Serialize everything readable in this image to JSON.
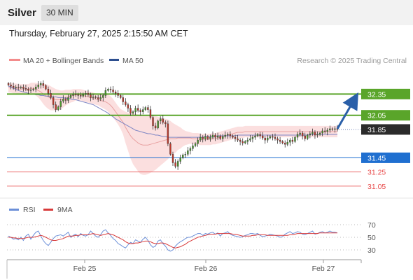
{
  "header": {
    "title": "Silver",
    "interval": "30 MIN",
    "datetime": "Thursday, February 27, 2025 2:15:50 AM CET"
  },
  "legend": {
    "bb_label": "MA 20 + Bollinger Bands",
    "ma50_label": "MA 50",
    "credit": "Research © 2025 Trading Central",
    "rsi_label": "RSI",
    "ma9_label": "9MA"
  },
  "colors": {
    "green_level": "#5aa52a",
    "blue_level": "#1f6fd0",
    "red_level": "#e84c4c",
    "price_badge": "#2b2b2b",
    "candle_up": "#4a9a2a",
    "candle_down": "#c0392b",
    "bollinger": "#f8c4c4",
    "ma50": "#7f86c4",
    "rsi": "#6b8fd8",
    "rsi_ma": "#d83a3a",
    "arrow": "#2a5fa8"
  },
  "chart_data": {
    "type": "candlestick",
    "price_axis": {
      "min": 30.95,
      "max": 32.65
    },
    "x_ticks": [
      "Feb 25",
      "Feb 26",
      "Feb 27"
    ],
    "levels": [
      {
        "value": 32.35,
        "label": "32.35",
        "kind": "resistance",
        "color": "#5aa52a"
      },
      {
        "value": 32.05,
        "label": "32.05",
        "kind": "resistance",
        "color": "#5aa52a"
      },
      {
        "value": 31.85,
        "label": "31.85",
        "kind": "last_price",
        "color": "#2b2b2b"
      },
      {
        "value": 31.45,
        "label": "31.45",
        "kind": "pivot",
        "color": "#1f6fd0"
      },
      {
        "value": 31.25,
        "label": "31.25",
        "kind": "support",
        "color": "#e84c4c"
      },
      {
        "value": 31.05,
        "label": "31.05",
        "kind": "support",
        "color": "#e84c4c"
      }
    ],
    "target_arrow": {
      "from": 31.85,
      "to": 32.35
    },
    "close": [
      32.48,
      32.46,
      32.44,
      32.45,
      32.44,
      32.45,
      32.43,
      32.42,
      32.4,
      32.41,
      32.42,
      32.45,
      32.48,
      32.5,
      32.47,
      32.42,
      32.36,
      32.3,
      32.2,
      32.13,
      32.17,
      32.25,
      32.28,
      32.26,
      32.3,
      32.33,
      32.35,
      32.34,
      32.33,
      32.32,
      32.35,
      32.36,
      32.34,
      32.3,
      32.31,
      32.3,
      32.28,
      32.3,
      32.33,
      32.4,
      32.42,
      32.41,
      32.38,
      32.36,
      32.33,
      32.3,
      32.24,
      32.2,
      32.15,
      32.08,
      32.1,
      32.15,
      32.12,
      32.1,
      32.13,
      32.16,
      32.13,
      32.02,
      31.9,
      31.87,
      31.97,
      32.0,
      31.95,
      31.93,
      31.65,
      31.5,
      31.38,
      31.33,
      31.4,
      31.45,
      31.49,
      31.5,
      31.55,
      31.58,
      31.62,
      31.65,
      31.7,
      31.74,
      31.72,
      31.75,
      31.72,
      31.74,
      31.77,
      31.74,
      31.76,
      31.72,
      31.75,
      31.77,
      31.78,
      31.76,
      31.74,
      31.72,
      31.7,
      31.68,
      31.66,
      31.68,
      31.7,
      31.72,
      31.74,
      31.76,
      31.78,
      31.76,
      31.73,
      31.7,
      31.73,
      31.75,
      31.74,
      31.72,
      31.7,
      31.68,
      31.66,
      31.64,
      31.67,
      31.7,
      31.68,
      31.74,
      31.78,
      31.8,
      31.76,
      31.72,
      31.77,
      31.79,
      31.81,
      31.77,
      31.78,
      31.8,
      31.83,
      31.82,
      31.84,
      31.86,
      31.85,
      31.86,
      31.85
    ],
    "ma20": [
      32.44,
      32.44,
      32.43,
      32.43,
      32.42,
      32.42,
      32.42,
      32.42,
      32.42,
      32.43,
      32.43,
      32.42,
      32.4,
      32.38,
      32.35,
      32.33,
      32.31,
      32.29,
      32.28,
      32.27,
      32.27,
      32.27,
      32.28,
      32.3,
      32.31,
      32.32,
      32.33,
      32.34,
      32.34,
      32.34,
      32.33,
      32.32,
      32.31,
      32.3,
      32.29,
      32.28,
      32.27,
      32.26,
      32.25,
      32.24,
      32.22,
      32.19,
      32.15,
      32.1,
      32.05,
      32.0,
      31.95,
      31.88,
      31.82,
      31.76,
      31.72,
      31.69,
      31.66,
      31.64,
      31.63,
      31.63,
      31.63,
      31.64,
      31.65,
      31.66,
      31.67,
      31.68,
      31.69,
      31.7,
      31.71,
      31.72,
      31.72,
      31.72,
      31.73,
      31.73,
      31.73,
      31.73,
      31.73,
      31.73,
      31.72,
      31.72,
      31.72,
      31.71,
      31.71,
      31.71,
      31.71,
      31.71,
      31.72,
      31.72,
      31.73,
      31.74,
      31.75,
      31.76,
      31.77,
      31.78,
      31.79,
      31.8,
      31.81,
      31.81,
      31.81,
      31.82,
      31.82,
      31.82,
      31.82,
      31.82,
      31.82,
      31.82,
      31.82,
      31.82,
      31.82,
      31.82,
      31.82,
      31.82,
      31.82,
      31.82,
      31.82,
      31.82,
      31.82,
      31.82,
      31.82,
      31.82,
      31.82,
      31.82,
      31.82,
      31.82,
      31.82,
      31.82,
      31.82,
      31.82,
      31.82,
      31.82,
      31.82,
      31.82,
      31.82,
      31.82,
      31.82,
      31.82,
      31.82
    ],
    "bb_width": [
      0.07,
      0.07,
      0.07,
      0.07,
      0.07,
      0.07,
      0.07,
      0.07,
      0.07,
      0.08,
      0.08,
      0.09,
      0.1,
      0.12,
      0.14,
      0.16,
      0.17,
      0.17,
      0.16,
      0.15,
      0.14,
      0.13,
      0.12,
      0.11,
      0.1,
      0.09,
      0.09,
      0.08,
      0.08,
      0.08,
      0.08,
      0.08,
      0.08,
      0.08,
      0.08,
      0.08,
      0.08,
      0.09,
      0.1,
      0.11,
      0.12,
      0.13,
      0.13,
      0.13,
      0.13,
      0.14,
      0.17,
      0.22,
      0.27,
      0.32,
      0.36,
      0.38,
      0.4,
      0.42,
      0.42,
      0.42,
      0.41,
      0.4,
      0.39,
      0.38,
      0.36,
      0.34,
      0.32,
      0.3,
      0.28,
      0.25,
      0.22,
      0.2,
      0.17,
      0.15,
      0.12,
      0.1,
      0.09,
      0.08,
      0.08,
      0.08,
      0.08,
      0.08,
      0.08,
      0.08,
      0.08,
      0.08,
      0.08,
      0.08,
      0.08,
      0.08,
      0.08,
      0.08,
      0.08,
      0.08,
      0.08,
      0.08,
      0.08,
      0.08,
      0.08,
      0.08,
      0.08,
      0.08,
      0.08,
      0.08,
      0.08,
      0.08,
      0.08,
      0.08,
      0.08,
      0.08,
      0.08,
      0.08,
      0.08,
      0.08,
      0.08,
      0.08,
      0.08,
      0.08,
      0.08,
      0.08,
      0.08,
      0.08,
      0.08,
      0.08,
      0.08,
      0.08,
      0.08,
      0.08,
      0.08,
      0.08,
      0.08,
      0.08,
      0.08,
      0.08,
      0.08,
      0.08,
      0.08
    ],
    "ma50": [
      32.46,
      32.45,
      32.43,
      32.42,
      32.4,
      32.39,
      32.38,
      32.37,
      32.36,
      32.35,
      32.35,
      32.34,
      32.34,
      32.33,
      32.33,
      32.32,
      32.32,
      32.31,
      32.31,
      32.31,
      32.3,
      32.3,
      32.3,
      32.29,
      32.29,
      32.28,
      32.27,
      32.27,
      32.26,
      32.25,
      32.24,
      32.23,
      32.22,
      32.21,
      32.2,
      32.18,
      32.16,
      32.14,
      32.12,
      32.1,
      32.08,
      32.05,
      32.03,
      32.0,
      31.98,
      31.96,
      31.94,
      31.92,
      31.9,
      31.88,
      31.86,
      31.84,
      31.83,
      31.82,
      31.81,
      31.8,
      31.79,
      31.79,
      31.78,
      31.77,
      31.77,
      31.76,
      31.75,
      31.75,
      31.74,
      31.74,
      31.74,
      31.74,
      31.74,
      31.74,
      31.74,
      31.74,
      31.74,
      31.74,
      31.74,
      31.74,
      31.74,
      31.74,
      31.74,
      31.75,
      31.75,
      31.75,
      31.75,
      31.75,
      31.76,
      31.76,
      31.76,
      31.76,
      31.76,
      31.76,
      31.76,
      31.76,
      31.77,
      31.77,
      31.77,
      31.77,
      31.77,
      31.77,
      31.77,
      31.77,
      31.77,
      31.77,
      31.77,
      31.77,
      31.77,
      31.77,
      31.77,
      31.77,
      31.77,
      31.77,
      31.77,
      31.77,
      31.77,
      31.77,
      31.77,
      31.77,
      31.77,
      31.77,
      31.77,
      31.77,
      31.77,
      31.78,
      31.78,
      31.78,
      31.78,
      31.78,
      31.78,
      31.78,
      31.78,
      31.78,
      31.78,
      31.78,
      31.78
    ],
    "rsi_axis": {
      "min": 20,
      "max": 80,
      "ticks": [
        70,
        50,
        30
      ]
    },
    "rsi": [
      52,
      50,
      47,
      48,
      46,
      50,
      45,
      52,
      55,
      47,
      53,
      58,
      60,
      52,
      45,
      40,
      37,
      42,
      48,
      52,
      53,
      54,
      52,
      55,
      58,
      50,
      53,
      55,
      51,
      56,
      53,
      52,
      54,
      60,
      56,
      52,
      50,
      54,
      60,
      62,
      57,
      53,
      48,
      45,
      40,
      38,
      35,
      33,
      38,
      42,
      40,
      46,
      44,
      42,
      47,
      50,
      45,
      38,
      34,
      36,
      44,
      46,
      40,
      36,
      30,
      28,
      30,
      36,
      40,
      43,
      45,
      48,
      50,
      50,
      52,
      54,
      56,
      56,
      53,
      56,
      55,
      57,
      58,
      55,
      57,
      52,
      56,
      57,
      59,
      55,
      53,
      52,
      51,
      50,
      51,
      53,
      54,
      56,
      56,
      55,
      56,
      53,
      51,
      52,
      53,
      55,
      54,
      53,
      52,
      50,
      51,
      55,
      57,
      59,
      56,
      57,
      59,
      58,
      55,
      54,
      56,
      58,
      60,
      55,
      56,
      58,
      59,
      57,
      58,
      60,
      58,
      58,
      57
    ],
    "rsi_ma": [
      50,
      50,
      49,
      49,
      48,
      48,
      48,
      49,
      50,
      50,
      50,
      51,
      52,
      53,
      52,
      50,
      48,
      46,
      45,
      45,
      46,
      47,
      48,
      50,
      52,
      52,
      52,
      53,
      53,
      54,
      54,
      54,
      54,
      55,
      56,
      55,
      54,
      53,
      54,
      55,
      56,
      55,
      54,
      52,
      50,
      48,
      46,
      43,
      41,
      40,
      40,
      41,
      41,
      42,
      43,
      44,
      44,
      43,
      41,
      40,
      40,
      41,
      41,
      40,
      38,
      36,
      34,
      33,
      34,
      35,
      37,
      39,
      42,
      44,
      46,
      48,
      50,
      51,
      52,
      53,
      54,
      55,
      55,
      55,
      56,
      56,
      56,
      56,
      56,
      56,
      55,
      55,
      54,
      53,
      52,
      52,
      52,
      52,
      53,
      53,
      54,
      54,
      54,
      54,
      53,
      53,
      53,
      53,
      53,
      53,
      53,
      53,
      53,
      54,
      54,
      55,
      56,
      56,
      56,
      56,
      56,
      56,
      56,
      56,
      56,
      57,
      57,
      57,
      57,
      57,
      57,
      57,
      57
    ]
  }
}
